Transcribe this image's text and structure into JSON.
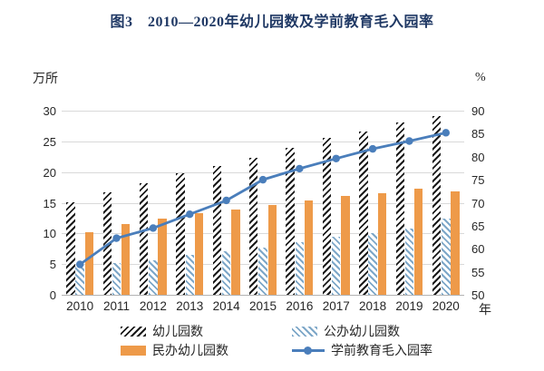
{
  "title": "图3　2010—2020年幼儿园数及学前教育毛入园率",
  "colors": {
    "title": "#1f3864",
    "hatch_black": "#1a1a1a",
    "hatch_blue": "#7da7c8",
    "orange": "#ee9a49",
    "line_blue": "#4a7ebb",
    "gridline": "#d9d9d9"
  },
  "chart_data": {
    "type": "bar",
    "subtype": "grouped-bars-with-line",
    "title": "图3　2010—2020年幼儿园数及学前教育毛入园率",
    "categories": [
      "2010",
      "2011",
      "2012",
      "2013",
      "2014",
      "2015",
      "2016",
      "2017",
      "2018",
      "2019",
      "2020"
    ],
    "series": [
      {
        "name": "幼儿园数",
        "type": "bar",
        "style": "hatch-black",
        "axis": "left",
        "values": [
          15.04,
          16.68,
          18.13,
          19.86,
          20.99,
          22.37,
          23.98,
          25.5,
          26.67,
          28.12,
          29.17
        ]
      },
      {
        "name": "公办幼儿园数",
        "type": "bar",
        "style": "hatch-blue",
        "axis": "left",
        "values": [
          4.82,
          5.14,
          5.67,
          6.51,
          7.06,
          7.73,
          8.56,
          9.46,
          10.09,
          10.8,
          12.37
        ]
      },
      {
        "name": "民办幼儿园数",
        "type": "bar",
        "style": "solid-orange",
        "axis": "left",
        "values": [
          10.22,
          11.54,
          12.46,
          13.35,
          13.93,
          14.64,
          15.42,
          16.04,
          16.58,
          17.32,
          16.8
        ]
      },
      {
        "name": "学前教育毛入园率",
        "type": "line",
        "style": "line-blue",
        "axis": "right",
        "values": [
          56.6,
          62.3,
          64.5,
          67.5,
          70.5,
          75.0,
          77.4,
          79.6,
          81.7,
          83.4,
          85.2
        ]
      }
    ],
    "left_axis": {
      "label": "万所",
      "min": 0,
      "max": 30,
      "step": 5,
      "ticks": [
        "0",
        "5",
        "10",
        "15",
        "20",
        "25",
        "30"
      ]
    },
    "right_axis": {
      "label": "%",
      "min": 50,
      "max": 90,
      "step": 5,
      "ticks": [
        "50",
        "55",
        "60",
        "65",
        "70",
        "75",
        "80",
        "85",
        "90"
      ]
    },
    "x_axis_label": "年",
    "grid": true,
    "legend_position": "bottom",
    "legend_order": [
      "幼儿园数",
      "公办幼儿园数",
      "民办幼儿园数",
      "学前教育毛入园率"
    ]
  }
}
